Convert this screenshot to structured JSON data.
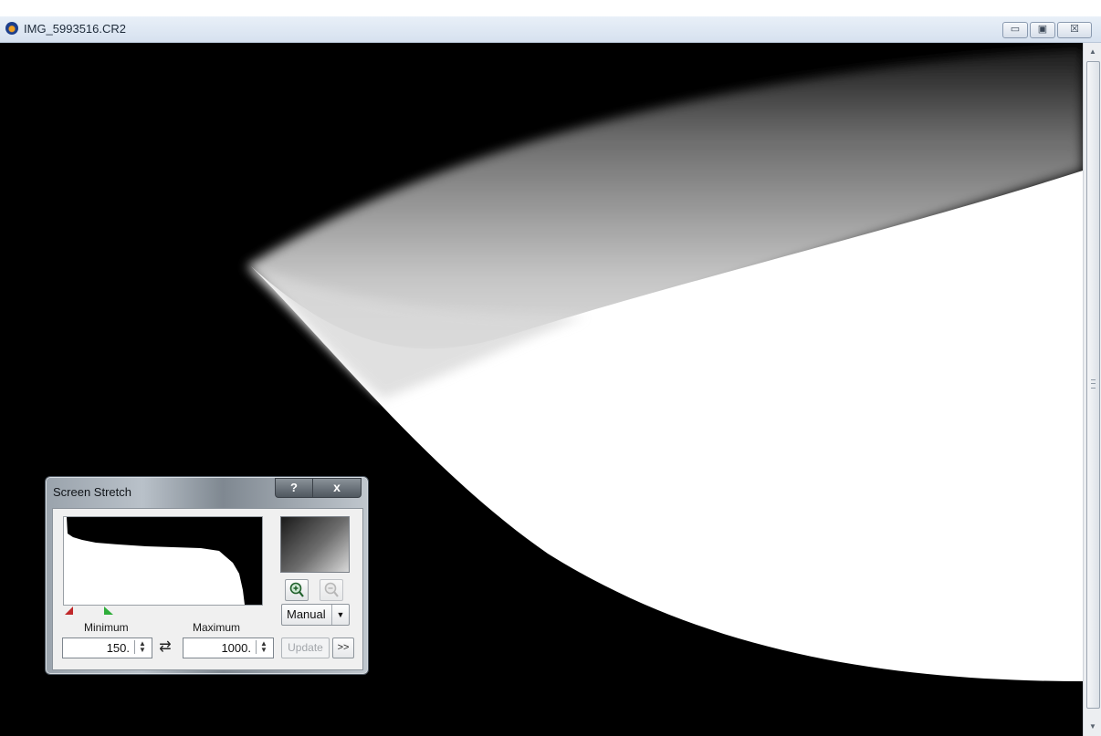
{
  "window": {
    "title": "IMG_5993516.CR2",
    "buttons": {
      "minimize": "▭",
      "maximize": "▣",
      "close": "☒"
    }
  },
  "scrollbar": {
    "up": "▲",
    "down": "▼"
  },
  "screen_stretch": {
    "title": "Screen Stretch",
    "help_label": "?",
    "close_label": "x",
    "minimum_label": "Minimum",
    "maximum_label": "Maximum",
    "minimum_value": "150.",
    "maximum_value": "1000.",
    "spin": "⁃",
    "swap_label": "⇄",
    "mode": "Manual",
    "mode_arrow": "▼",
    "update_label": "Update",
    "expand_label": ">>",
    "icons": {
      "zoom_in": "zoom-in-icon",
      "zoom_out": "zoom-out-icon",
      "min_marker": "min-marker-red-triangle",
      "max_marker": "max-marker-green-triangle"
    }
  }
}
